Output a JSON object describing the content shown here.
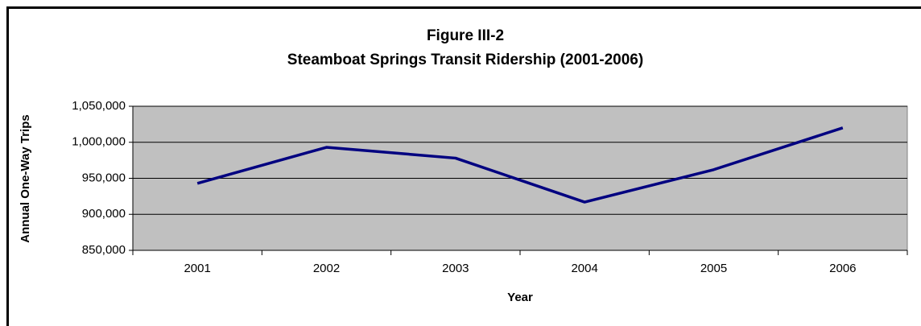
{
  "chart_data": {
    "type": "line",
    "title": "Figure III-2",
    "subtitle": "Steamboat Springs Transit Ridership (2001-2006)",
    "x_label": "Year",
    "y_label": "Annual One-Way Trips",
    "categories": [
      "2001",
      "2002",
      "2003",
      "2004",
      "2005",
      "2006"
    ],
    "series": [
      {
        "name": "Annual One-Way Trips",
        "color": "#000080",
        "values": [
          943000,
          993000,
          978000,
          917000,
          962000,
          1020000
        ]
      }
    ],
    "ylim": [
      850000,
      1050000
    ],
    "yticks": [
      {
        "value": 850000,
        "label": "850,000"
      },
      {
        "value": 900000,
        "label": "900,000"
      },
      {
        "value": 950000,
        "label": "950,000"
      },
      {
        "value": 1000000,
        "label": "1,000,000"
      },
      {
        "value": 1050000,
        "label": "1,050,000"
      }
    ],
    "grid": true,
    "plot_background": "#c0c0c0"
  }
}
